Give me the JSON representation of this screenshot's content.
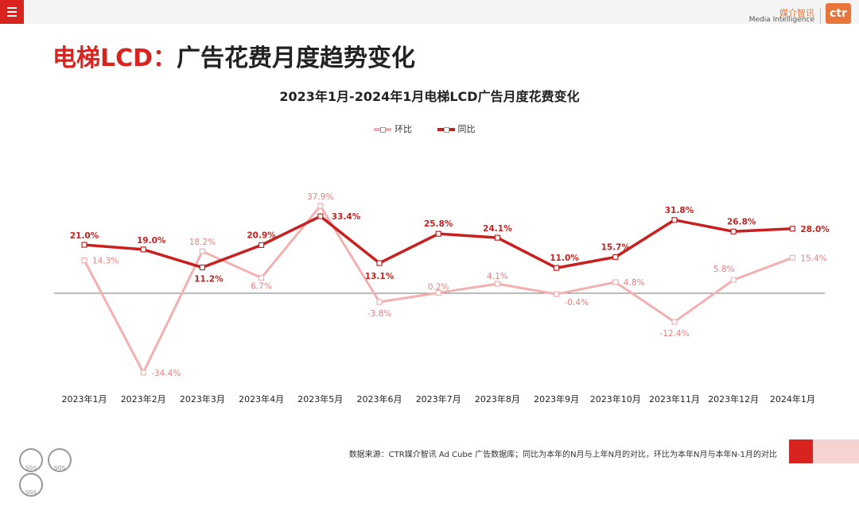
{
  "page_title": {
    "accent": "电梯LCD：",
    "rest": "广告花费月度趋势变化"
  },
  "logo": {
    "cn": "媒介智讯",
    "en": "Media Intelligence",
    "mark": "ctr"
  },
  "source_note": "数据来源：CTR媒介智讯 Ad Cube 广告数据库；同比为本年的N月与上年N月的对比，环比为本年N月与本年N-1月的对比",
  "badges": [
    "SGS",
    "SGS",
    "SGS"
  ],
  "colors": {
    "brand_red": "#d8231f",
    "yoy": "#c8201e",
    "mom": "#f4b0b0",
    "mom_label": "#e98080",
    "logo_orange": "#e8763c"
  },
  "chart_data": {
    "type": "line",
    "title": "2023年1月-2024年1月电梯LCD广告月度花费变化",
    "categories": [
      "2023年1月",
      "2023年2月",
      "2023年3月",
      "2023年4月",
      "2023年5月",
      "2023年6月",
      "2023年7月",
      "2023年8月",
      "2023年9月",
      "2023年10月",
      "2023年11月",
      "2023年12月",
      "2024年1月"
    ],
    "series": [
      {
        "name": "环比",
        "values": [
          14.3,
          -34.4,
          18.2,
          6.7,
          37.9,
          -3.8,
          0.2,
          4.1,
          -0.4,
          4.8,
          -12.4,
          5.8,
          15.4
        ],
        "labels": [
          "14.3%",
          "-34.4%",
          "18.2%",
          "6.7%",
          "37.9%",
          "-3.8%",
          "0.2%",
          "4.1%",
          "-0.4%",
          "4.8%",
          "-12.4%",
          "5.8%",
          "15.4%"
        ]
      },
      {
        "name": "同比",
        "values": [
          21.0,
          19.0,
          11.2,
          20.9,
          33.4,
          13.1,
          25.8,
          24.1,
          11.0,
          15.7,
          31.8,
          26.8,
          28.0
        ],
        "labels": [
          "21.0%",
          "19.0%",
          "11.2%",
          "20.9%",
          "33.4%",
          "13.1%",
          "25.8%",
          "24.1%",
          "11.0%",
          "15.7%",
          "31.8%",
          "26.8%",
          "28.0%"
        ]
      }
    ],
    "legend_position": "top-center",
    "grid": false,
    "zero_line": true,
    "y_axis_visible": false
  }
}
